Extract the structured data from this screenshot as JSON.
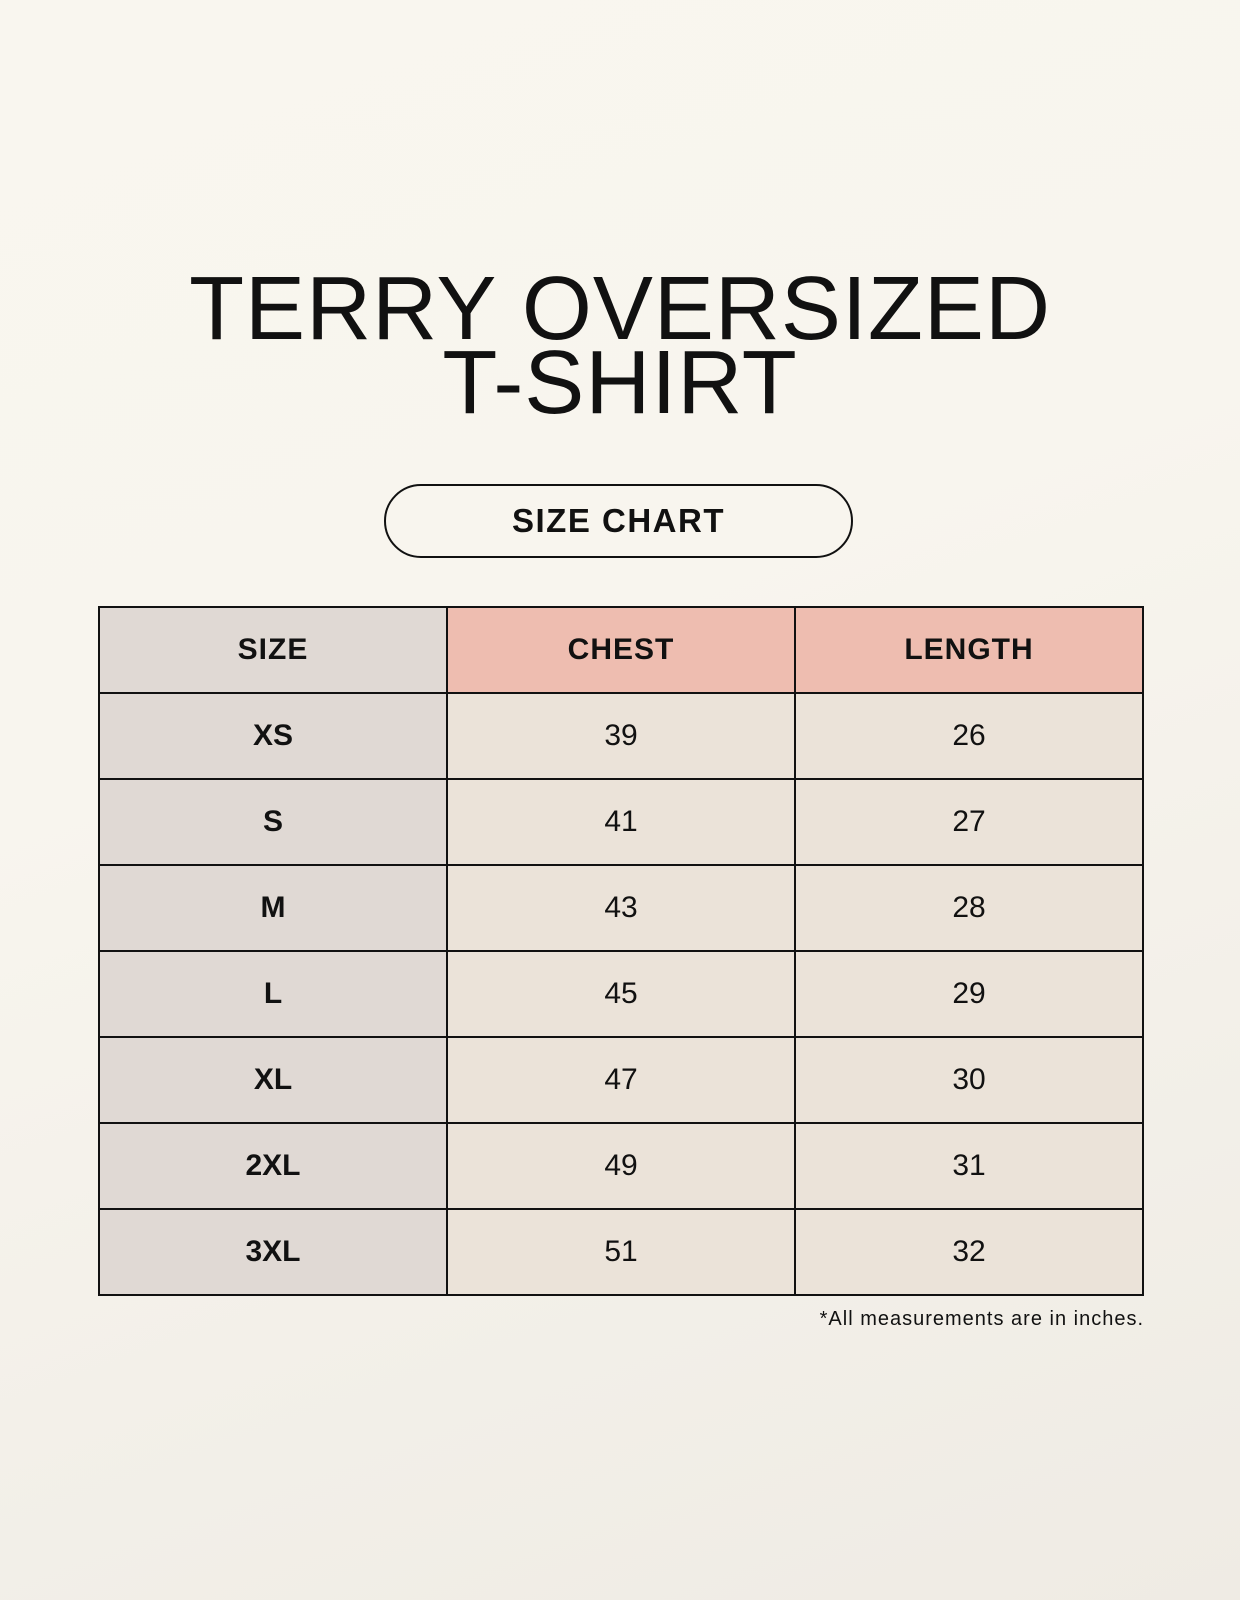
{
  "title": {
    "line1": "TERRY OVERSIZED",
    "line2": "T-SHIRT"
  },
  "subtitle": "SIZE CHART",
  "table": {
    "headers": [
      "SIZE",
      "CHEST",
      "LENGTH"
    ],
    "rows": [
      [
        "XS",
        "39",
        "26"
      ],
      [
        "S",
        "41",
        "27"
      ],
      [
        "M",
        "43",
        "28"
      ],
      [
        "L",
        "45",
        "29"
      ],
      [
        "XL",
        "47",
        "30"
      ],
      [
        "2XL",
        "49",
        "31"
      ],
      [
        "3XL",
        "51",
        "32"
      ]
    ]
  },
  "footnote": "*All measurements are in inches.",
  "colors": {
    "size_column": "#e0d9d4",
    "header_accent": "#eebdb0",
    "cell": "#ebe3d9"
  }
}
